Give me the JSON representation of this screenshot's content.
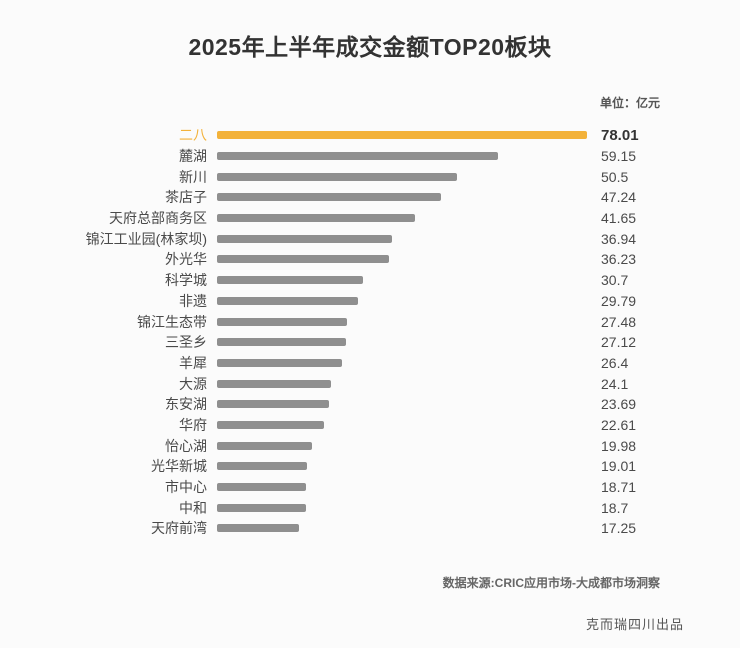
{
  "title": "2025年上半年成交金额TOP20板块",
  "unit_label": "单位：亿元",
  "source": "数据来源:CRIC应用市场-大成都市场洞察",
  "producer": "克而瑞四川出品",
  "colors": {
    "highlight": "#f3b23a",
    "bar": "#8f8f8f"
  },
  "chart_data": {
    "type": "bar",
    "orientation": "horizontal",
    "title": "2025年上半年成交金额TOP20板块",
    "unit": "亿元",
    "xlim": [
      0,
      78.01
    ],
    "grid": false,
    "legend": false,
    "highlight_index": 0,
    "categories": [
      "二八",
      "麓湖",
      "新川",
      "茶店子",
      "天府总部商务区",
      "锦江工业园(林家坝)",
      "外光华",
      "科学城",
      "非遗",
      "锦江生态带",
      "三圣乡",
      "羊犀",
      "大源",
      "东安湖",
      "华府",
      "怡心湖",
      "光华新城",
      "市中心",
      "中和",
      "天府前湾"
    ],
    "values": [
      78.01,
      59.15,
      50.5,
      47.24,
      41.65,
      36.94,
      36.23,
      30.7,
      29.79,
      27.48,
      27.12,
      26.4,
      24.1,
      23.69,
      22.61,
      19.98,
      19.01,
      18.71,
      18.7,
      17.25
    ]
  }
}
